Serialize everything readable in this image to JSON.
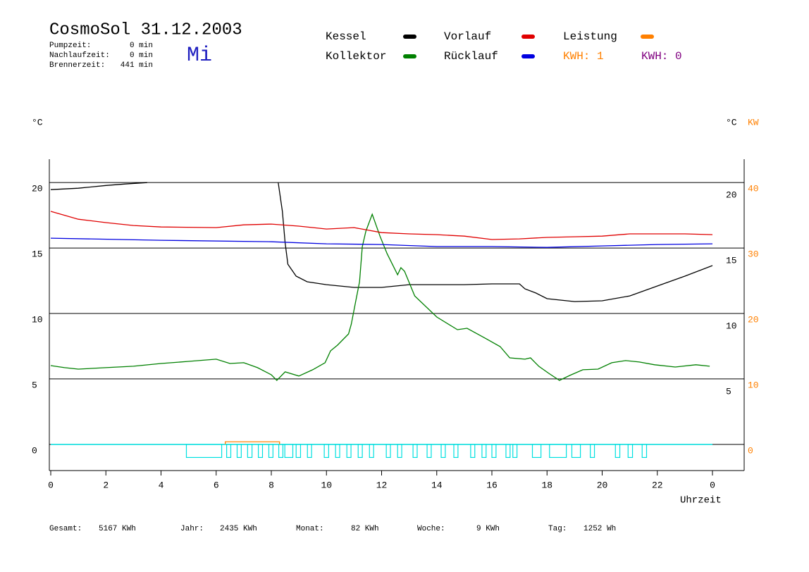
{
  "header": {
    "title": "CosmoSol 31.12.2003",
    "day": "Mi",
    "times": [
      {
        "label": "Pumpzeit:",
        "value": "0 min"
      },
      {
        "label": "Nachlaufzeit:",
        "value": "0 min"
      },
      {
        "label": "Brennerzeit:",
        "value": "441 min"
      }
    ]
  },
  "chart_data": {
    "type": "line",
    "xlabel": "Uhrzeit",
    "ylabel": "°C",
    "right_ylabel": "°C",
    "y2label": "KW",
    "y2color": "#ff8000",
    "xlim": [
      0,
      25.15
    ],
    "xticks": [
      0,
      2,
      4,
      6,
      8,
      10,
      12,
      14,
      16,
      18,
      20,
      22,
      {
        "value": 24,
        "label": "0"
      }
    ],
    "ylim": [
      -2,
      22
    ],
    "yticks": [
      0,
      5,
      10,
      15,
      20
    ],
    "right_yticks": [
      5,
      10,
      15,
      20
    ],
    "y2lim": [
      -4,
      44
    ],
    "y2ticks": [
      0,
      10,
      20,
      30,
      40
    ],
    "grid": true,
    "series": [
      {
        "name": "Kessel",
        "color": "#000000",
        "x": [
          0,
          1,
          2,
          2.7,
          3.5,
          5,
          8.25,
          8.4,
          8.5,
          8.6,
          8.9,
          9.3,
          10,
          11,
          12,
          13,
          14,
          15,
          16,
          17,
          17.2,
          17.6,
          18,
          19,
          20,
          21,
          22,
          23,
          24
        ],
        "values": [
          19.46,
          19.57,
          19.78,
          19.89,
          20.0,
          null,
          20.0,
          17.8,
          15.4,
          13.76,
          12.85,
          12.42,
          12.2,
          11.99,
          11.99,
          12.2,
          12.2,
          12.2,
          12.26,
          12.26,
          11.88,
          11.56,
          11.13,
          10.91,
          10.97,
          11.34,
          12.1,
          12.85,
          13.66
        ]
      },
      {
        "name": "Kollektor",
        "color": "#008000",
        "x": [
          0,
          0.5,
          1,
          2,
          3,
          4,
          5,
          6,
          6.5,
          7,
          7.5,
          8,
          8.2,
          8.5,
          9,
          9.5,
          9.95,
          10.15,
          10.4,
          10.8,
          10.9,
          11.05,
          11.2,
          11.3,
          11.43,
          11.66,
          11.94,
          12.2,
          12.58,
          12.7,
          12.83,
          13.2,
          14,
          14.75,
          15.1,
          15.75,
          16.3,
          16.65,
          17.2,
          17.4,
          17.7,
          18.06,
          18.45,
          18.83,
          19.3,
          19.85,
          20.35,
          20.85,
          21.35,
          21.9,
          22.65,
          23.4,
          23.9
        ],
        "values": [
          6.02,
          5.86,
          5.75,
          5.86,
          5.97,
          6.18,
          6.34,
          6.51,
          6.18,
          6.24,
          5.86,
          5.32,
          4.89,
          5.54,
          5.22,
          5.7,
          6.24,
          7.15,
          7.58,
          8.44,
          9.19,
          10.8,
          12.42,
          15.1,
          16.29,
          17.58,
          15.91,
          14.57,
          12.96,
          13.5,
          13.23,
          11.34,
          9.73,
          8.76,
          8.87,
          8.12,
          7.47,
          6.61,
          6.51,
          6.61,
          5.97,
          5.43,
          4.89,
          5.27,
          5.7,
          5.75,
          6.24,
          6.4,
          6.29,
          6.08,
          5.91,
          6.08,
          5.97
        ]
      },
      {
        "name": "Vorlauf",
        "color": "#e00000",
        "x": [
          0,
          1,
          2,
          3,
          4,
          6,
          7,
          8,
          9,
          10,
          11,
          12,
          13,
          14,
          15,
          16,
          17,
          18,
          19,
          20,
          21,
          22,
          23,
          24
        ],
        "values": [
          17.8,
          17.2,
          16.94,
          16.72,
          16.61,
          16.56,
          16.77,
          16.83,
          16.67,
          16.45,
          16.56,
          16.18,
          16.08,
          16.02,
          15.91,
          15.65,
          15.7,
          15.81,
          15.86,
          15.91,
          16.08,
          16.08,
          16.08,
          16.02
        ]
      },
      {
        "name": "Rücklauf",
        "color": "#0000e0",
        "x": [
          0,
          4,
          8,
          10,
          12,
          14,
          16,
          18,
          20,
          22,
          24
        ],
        "values": [
          15.75,
          15.59,
          15.48,
          15.32,
          15.27,
          15.11,
          15.11,
          15.05,
          15.16,
          15.27,
          15.32
        ]
      },
      {
        "name": "Leistung",
        "color": "#ff8000",
        "axis": "y2",
        "x": [
          6.33,
          6.33,
          8.3,
          8.3
        ],
        "values": [
          0,
          0.4,
          0.4,
          0
        ]
      }
    ],
    "pump": {
      "color": "#00e0e0",
      "level": -1,
      "intervals": [
        [
          4.92,
          6.2
        ],
        [
          6.38,
          6.53
        ],
        [
          6.76,
          6.91
        ],
        [
          7.14,
          7.3
        ],
        [
          7.53,
          7.68
        ],
        [
          7.91,
          8.06
        ],
        [
          8.27,
          8.42
        ],
        [
          8.49,
          8.78
        ],
        [
          8.9,
          9.06
        ],
        [
          9.31,
          9.46
        ],
        [
          9.92,
          10.08
        ],
        [
          10.33,
          10.48
        ],
        [
          10.74,
          10.89
        ],
        [
          11.15,
          11.3
        ],
        [
          11.56,
          11.71
        ],
        [
          12.17,
          12.32
        ],
        [
          12.58,
          12.73
        ],
        [
          13.14,
          13.29
        ],
        [
          13.65,
          13.8
        ],
        [
          14.16,
          14.31
        ],
        [
          14.62,
          14.77
        ],
        [
          15.23,
          15.38
        ],
        [
          15.64,
          15.79
        ],
        [
          16.0,
          16.15
        ],
        [
          16.51,
          16.66
        ],
        [
          16.76,
          16.91
        ],
        [
          17.47,
          17.78
        ],
        [
          18.09,
          18.7
        ],
        [
          18.9,
          19.21
        ],
        [
          19.57,
          19.72
        ],
        [
          20.48,
          20.64
        ],
        [
          20.94,
          21.1
        ],
        [
          21.45,
          21.61
        ]
      ]
    },
    "annotations": [
      {
        "text": "KWH: 1",
        "color": "#ff8000"
      },
      {
        "text": "KWH: 0",
        "color": "#800080"
      }
    ]
  },
  "footer": {
    "totals": [
      {
        "label": "Gesamt:",
        "value": "5167 KWh"
      },
      {
        "label": "Jahr:",
        "value": "2435 KWh"
      },
      {
        "label": "Monat:",
        "value": "82 KWh"
      },
      {
        "label": "Woche:",
        "value": "9 KWh"
      },
      {
        "label": "Tag:",
        "value": "1252 Wh"
      }
    ]
  }
}
